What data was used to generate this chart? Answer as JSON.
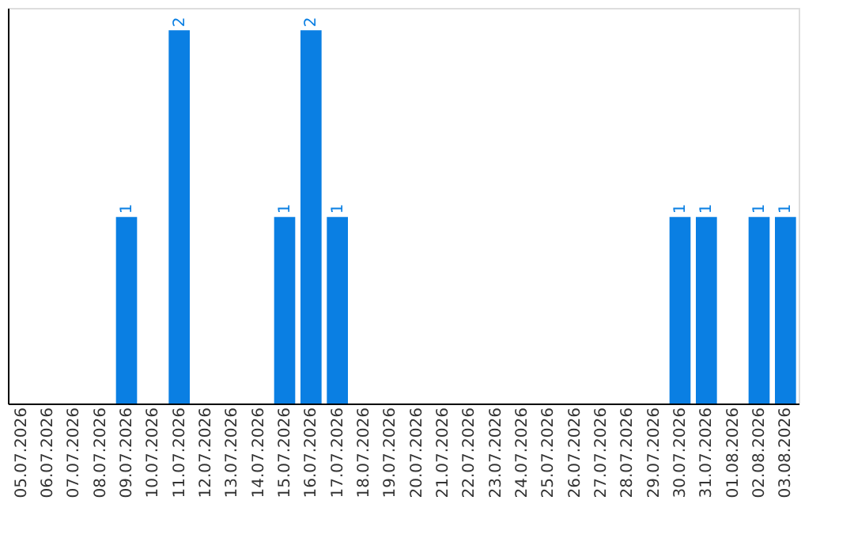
{
  "chart_data": {
    "type": "bar",
    "categories": [
      "05.07.2026",
      "06.07.2026",
      "07.07.2026",
      "08.07.2026",
      "09.07.2026",
      "10.07.2026",
      "11.07.2026",
      "12.07.2026",
      "13.07.2026",
      "14.07.2026",
      "15.07.2026",
      "16.07.2026",
      "17.07.2026",
      "18.07.2026",
      "19.07.2026",
      "20.07.2026",
      "21.07.2026",
      "22.07.2026",
      "23.07.2026",
      "24.07.2026",
      "25.07.2026",
      "26.07.2026",
      "27.07.2026",
      "28.07.2026",
      "29.07.2026",
      "30.07.2026",
      "31.07.2026",
      "01.08.2026",
      "02.08.2026",
      "03.08.2026"
    ],
    "values": [
      0,
      0,
      0,
      0,
      1,
      0,
      2,
      0,
      0,
      0,
      1,
      2,
      1,
      0,
      0,
      0,
      0,
      0,
      0,
      0,
      0,
      0,
      0,
      0,
      0,
      1,
      1,
      0,
      1,
      1
    ],
    "value_labels": [
      null,
      null,
      null,
      null,
      "1",
      null,
      "2",
      null,
      null,
      null,
      "1",
      "2",
      "1",
      null,
      null,
      null,
      null,
      null,
      null,
      null,
      null,
      null,
      null,
      null,
      null,
      "1",
      "1",
      null,
      "1",
      "1"
    ],
    "color": "#0a7fe3",
    "tick_labels": "x",
    "grid": false
  }
}
